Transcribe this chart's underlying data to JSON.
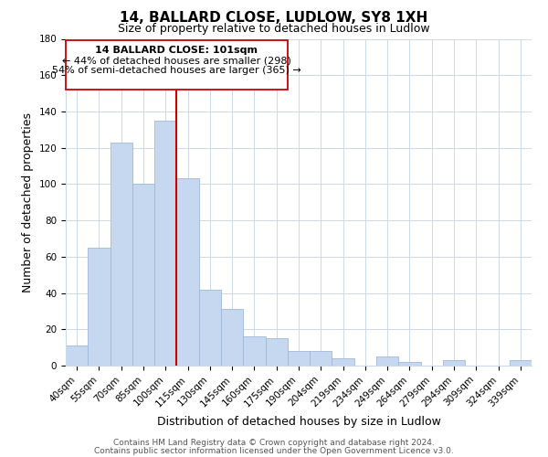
{
  "title": "14, BALLARD CLOSE, LUDLOW, SY8 1XH",
  "subtitle": "Size of property relative to detached houses in Ludlow",
  "xlabel": "Distribution of detached houses by size in Ludlow",
  "ylabel": "Number of detached properties",
  "categories": [
    "40sqm",
    "55sqm",
    "70sqm",
    "85sqm",
    "100sqm",
    "115sqm",
    "130sqm",
    "145sqm",
    "160sqm",
    "175sqm",
    "190sqm",
    "204sqm",
    "219sqm",
    "234sqm",
    "249sqm",
    "264sqm",
    "279sqm",
    "294sqm",
    "309sqm",
    "324sqm",
    "339sqm"
  ],
  "values": [
    11,
    65,
    123,
    100,
    135,
    103,
    42,
    31,
    16,
    15,
    8,
    8,
    4,
    0,
    5,
    2,
    0,
    3,
    0,
    0,
    3
  ],
  "bar_color": "#c5d8f0",
  "bar_edge_color": "#a0b8d8",
  "vline_color": "#cc0000",
  "ylim": [
    0,
    180
  ],
  "yticks": [
    0,
    20,
    40,
    60,
    80,
    100,
    120,
    140,
    160,
    180
  ],
  "annotation_line1": "14 BALLARD CLOSE: 101sqm",
  "annotation_line2": "← 44% of detached houses are smaller (298)",
  "annotation_line3": "54% of semi-detached houses are larger (365) →",
  "footer_line1": "Contains HM Land Registry data © Crown copyright and database right 2024.",
  "footer_line2": "Contains public sector information licensed under the Open Government Licence v3.0.",
  "title_fontsize": 11,
  "subtitle_fontsize": 9,
  "axis_label_fontsize": 9,
  "tick_fontsize": 7.5,
  "annotation_fontsize": 8,
  "footer_fontsize": 6.5,
  "background_color": "#ffffff",
  "grid_color": "#ccd9e8"
}
